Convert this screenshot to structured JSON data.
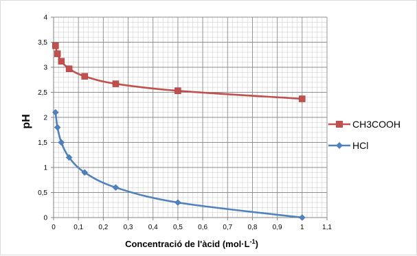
{
  "chart_data": {
    "type": "line",
    "title": "",
    "xlabel": "Concentració de l'àcid (mol·L",
    "xlabel_superscript": "-1",
    "xlabel_suffix": ")",
    "ylabel": "pH",
    "xlim": [
      0,
      1.1
    ],
    "ylim": [
      0,
      4
    ],
    "x_ticks": [
      0,
      0.1,
      0.2,
      0.3,
      0.4,
      0.5,
      0.6,
      0.7,
      0.8,
      0.9,
      1,
      1.1
    ],
    "x_tick_labels": [
      "0",
      "0,1",
      "0,2",
      "0,3",
      "0,4",
      "0,5",
      "0,6",
      "0,7",
      "0,8",
      "0,9",
      "1",
      "1,1"
    ],
    "y_ticks": [
      0,
      0.5,
      1,
      1.5,
      2,
      2.5,
      3,
      3.5,
      4
    ],
    "y_tick_labels": [
      "0",
      "0,5",
      "1",
      "1,5",
      "2",
      "2,5",
      "3",
      "3,5",
      "4"
    ],
    "grid": true,
    "legend_position": "right",
    "series": [
      {
        "name": "CH3COOH",
        "color": "#c0504d",
        "marker": "square",
        "x": [
          0.0078,
          0.0156,
          0.03125,
          0.0625,
          0.125,
          0.25,
          0.5,
          1
        ],
        "y": [
          3.43,
          3.27,
          3.12,
          2.97,
          2.82,
          2.67,
          2.53,
          2.37
        ]
      },
      {
        "name": "HCl",
        "color": "#4f81bd",
        "marker": "diamond",
        "x": [
          0.0078,
          0.0156,
          0.03125,
          0.0625,
          0.125,
          0.25,
          0.5,
          1
        ],
        "y": [
          2.1,
          1.8,
          1.5,
          1.2,
          0.9,
          0.6,
          0.3,
          0
        ]
      }
    ]
  }
}
